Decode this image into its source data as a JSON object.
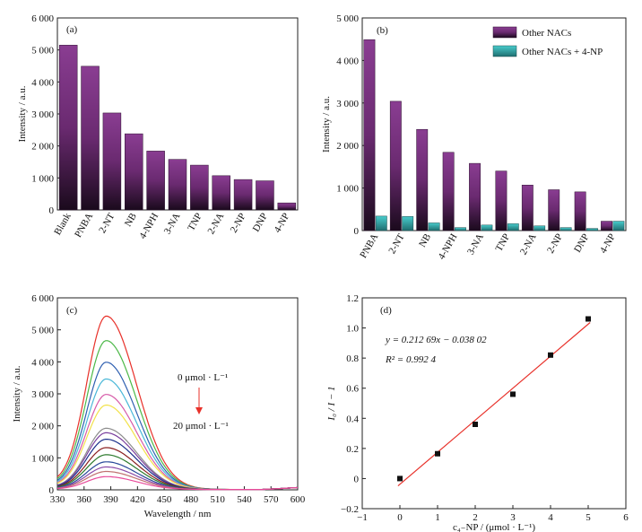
{
  "chart_data": [
    {
      "panel": "(a)",
      "type": "bar",
      "categories": [
        "Blank",
        "PNBA",
        "2-NT",
        "NB",
        "4-NPH",
        "3-NA",
        "TNP",
        "2-NA",
        "2-NP",
        "DNP",
        "4-NP"
      ],
      "values": [
        5150,
        4490,
        3030,
        2380,
        1840,
        1580,
        1400,
        1070,
        950,
        910,
        220
      ],
      "ylabel": "Intensity / a.u.",
      "ylim": [
        0,
        6000
      ],
      "yticks": [
        0,
        1000,
        2000,
        3000,
        4000,
        5000,
        6000
      ],
      "ytick_labels": [
        "0",
        "1 000",
        "2 000",
        "3 000",
        "4 000",
        "5 000",
        "6 000"
      ],
      "color": "#7b2f80"
    },
    {
      "panel": "(b)",
      "type": "bar",
      "categories": [
        "PNBA",
        "2-NT",
        "NB",
        "4-NPH",
        "3-NA",
        "TNP",
        "2-NA",
        "2-NP",
        "DNP",
        "4-NP"
      ],
      "series": [
        {
          "name": "Other NACs",
          "values": [
            4490,
            3040,
            2380,
            1840,
            1580,
            1400,
            1070,
            960,
            910,
            220
          ],
          "color": "#7b2f80"
        },
        {
          "name": "Other NACs + 4-NP",
          "values": [
            340,
            330,
            180,
            70,
            130,
            160,
            110,
            70,
            50,
            220
          ],
          "color": "#3bbcbc"
        }
      ],
      "ylabel": "Intensity / a.u.",
      "ylim": [
        0,
        5000
      ],
      "yticks": [
        0,
        1000,
        2000,
        3000,
        4000,
        5000
      ],
      "ytick_labels": [
        "0",
        "1 000",
        "2 000",
        "3 000",
        "4 000",
        "5 000"
      ],
      "legend": "top-right"
    },
    {
      "panel": "(c)",
      "type": "line",
      "xlabel": "Wavelength / nm",
      "ylabel": "Intensity / a.u.",
      "xlim": [
        330,
        600
      ],
      "ylim": [
        0,
        6000
      ],
      "xticks": [
        330,
        360,
        390,
        420,
        450,
        480,
        510,
        540,
        570,
        600
      ],
      "yticks": [
        0,
        1000,
        2000,
        3000,
        4000,
        5000,
        6000
      ],
      "ytick_labels": [
        "0",
        "1 000",
        "2 000",
        "3 000",
        "4 000",
        "5 000",
        "6 000"
      ],
      "peak_x": 385,
      "annotation_top": "0 μmol · L⁻¹",
      "annotation_bottom": "20 μmol · L⁻¹",
      "series": [
        {
          "peak": 5380,
          "color": "#e8312a"
        },
        {
          "peak": 4620,
          "color": "#4cb848"
        },
        {
          "peak": 3950,
          "color": "#2e5fb0"
        },
        {
          "peak": 3430,
          "color": "#4ab8d8"
        },
        {
          "peak": 2950,
          "color": "#d65aa8"
        },
        {
          "peak": 2620,
          "color": "#f2e24a"
        },
        {
          "peak": 1900,
          "color": "#8c8c8c"
        },
        {
          "peak": 1760,
          "color": "#7a3f9e"
        },
        {
          "peak": 1560,
          "color": "#1a2f8a"
        },
        {
          "peak": 1300,
          "color": "#8a2020"
        },
        {
          "peak": 1080,
          "color": "#2d7a2d"
        },
        {
          "peak": 860,
          "color": "#2a4a9a"
        },
        {
          "peak": 700,
          "color": "#8a4aa8"
        },
        {
          "peak": 560,
          "color": "#c07070"
        },
        {
          "peak": 400,
          "color": "#e84a9a"
        }
      ]
    },
    {
      "panel": "(d)",
      "type": "scatter",
      "x": [
        0,
        1,
        2,
        3,
        4,
        5
      ],
      "y": [
        0.0,
        0.165,
        0.36,
        0.56,
        0.82,
        1.06
      ],
      "fit_slope": 0.21269,
      "fit_intercept": -0.03802,
      "equation": "y = 0.212 69x − 0.038 02",
      "r2": "R² = 0.992 4",
      "xlim": [
        -1,
        6
      ],
      "ylim": [
        -0.2,
        1.2
      ],
      "xticks": [
        -1,
        0,
        1,
        2,
        3,
        4,
        5,
        6
      ],
      "yticks": [
        -0.2,
        0,
        0.2,
        0.4,
        0.6,
        0.8,
        1.0,
        1.2
      ],
      "ytick_labels": [
        "−0.2",
        "0",
        "0.2",
        "0.4",
        "0.6",
        "0.8",
        "1.0",
        "1.2"
      ],
      "xtick_labels": [
        "−1",
        "0",
        "1",
        "2",
        "3",
        "4",
        "5",
        "6"
      ],
      "xlabel": "c₄₋NP / (μmol · L⁻¹)",
      "ylabel": "I₀ / I − 1",
      "marker_color": "#111111",
      "line_color": "#e8312a"
    }
  ]
}
